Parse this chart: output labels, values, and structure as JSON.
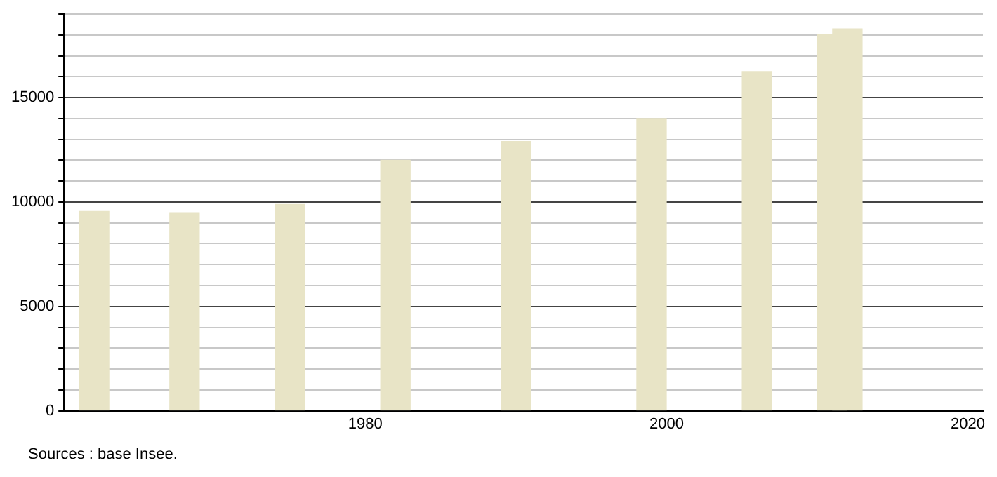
{
  "chart_data": {
    "type": "bar",
    "x": [
      1962,
      1968,
      1975,
      1982,
      1990,
      1999,
      2006,
      2011,
      2012
    ],
    "values": [
      9550,
      9490,
      9880,
      12000,
      12900,
      14000,
      16250,
      18000,
      18290
    ],
    "color": "#e8e4c6",
    "xlim": [
      1960,
      2021
    ],
    "xticks": [
      1980,
      2000,
      2020
    ],
    "ylim": [
      0,
      19000
    ],
    "yticks": [
      0,
      {
        "value": 1000,
        "label": null
      },
      {
        "value": 2000,
        "label": null
      },
      {
        "value": 3000,
        "label": null
      },
      {
        "value": 4000,
        "label": null
      },
      5000,
      {
        "value": 6000,
        "label": null
      },
      {
        "value": 7000,
        "label": null
      },
      {
        "value": 8000,
        "label": null
      },
      {
        "value": 9000,
        "label": null
      },
      10000,
      {
        "value": 11000,
        "label": null
      },
      {
        "value": 12000,
        "label": null
      },
      {
        "value": 13000,
        "label": null
      },
      {
        "value": 14000,
        "label": null
      },
      15000,
      {
        "value": 16000,
        "label": null
      },
      {
        "value": 17000,
        "label": null
      },
      {
        "value": 18000,
        "label": null
      },
      {
        "value": 19000,
        "label": null
      }
    ],
    "grid": "y",
    "legend": false,
    "annotations": [
      "Sources : base Insee."
    ]
  }
}
